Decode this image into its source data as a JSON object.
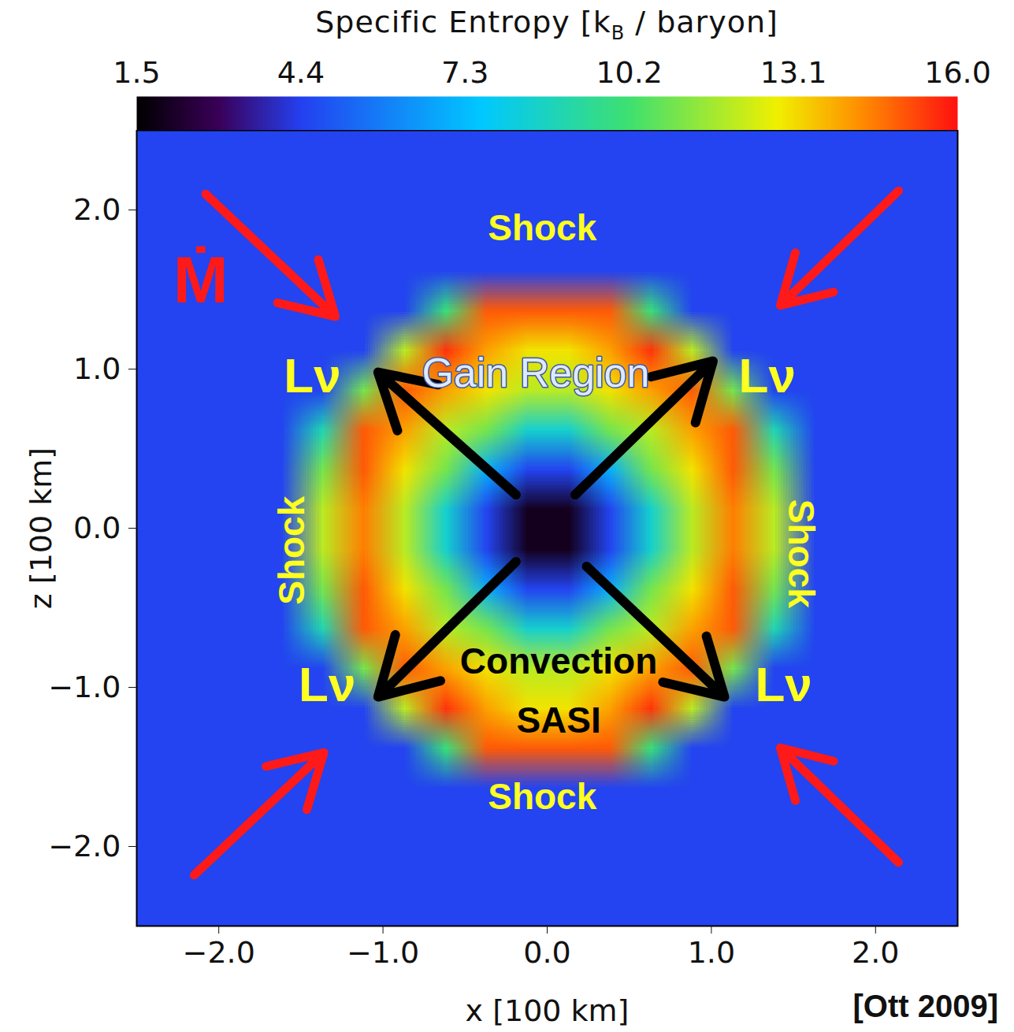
{
  "chart_data": {
    "type": "heatmap",
    "colorbar_label": "Specific Entropy [kB / baryon]",
    "xlabel": "x [100 km]",
    "ylabel": "z [100 km]",
    "xlim": [
      -2.5,
      2.5
    ],
    "ylim": [
      -2.5,
      2.5
    ],
    "xticks": [
      -2,
      -1,
      0,
      1,
      2
    ],
    "yticks": [
      -2,
      -1,
      0,
      1,
      2
    ],
    "grid": false,
    "color_range": [
      1.5,
      16
    ],
    "color_ticks": [
      1.5,
      4.4,
      7.3,
      10.2,
      13.1,
      {
        "value": 16,
        "label": "16.0"
      }
    ],
    "cells": [
      [
        4.5,
        4.5,
        4.5,
        4.5,
        4.5,
        4.5,
        4.5,
        4.5,
        4.5,
        4.5,
        4.5,
        4.5,
        4.5,
        4.5,
        4.5,
        4.5,
        4.5,
        4.5,
        4.5,
        4.5
      ],
      [
        4.5,
        4.5,
        4.5,
        4.5,
        4.5,
        4.5,
        4.5,
        4.5,
        4.5,
        4.5,
        4.5,
        4.5,
        4.5,
        4.5,
        4.5,
        4.5,
        4.5,
        4.5,
        4.5,
        4.5
      ],
      [
        4.5,
        4.5,
        4.5,
        4.5,
        4.5,
        4.5,
        4.5,
        4.5,
        4.5,
        4.5,
        4.5,
        4.5,
        4.5,
        4.5,
        4.5,
        4.5,
        4.5,
        4.5,
        4.5,
        4.5
      ],
      [
        4.5,
        4.5,
        4.5,
        4.5,
        4.5,
        4.5,
        4.5,
        4.5,
        4.5,
        4.5,
        4.5,
        4.5,
        4.5,
        4.5,
        4.5,
        4.5,
        4.5,
        4.5,
        4.5,
        4.5
      ],
      [
        4.5,
        4.5,
        4.5,
        4.5,
        4.5,
        4.5,
        4.5,
        10,
        15,
        15,
        15,
        15,
        10,
        4.5,
        4.5,
        4.5,
        4.5,
        4.5,
        4.5,
        4.5
      ],
      [
        4.5,
        4.5,
        4.5,
        4.5,
        4.5,
        4.5,
        12,
        15.5,
        14,
        13,
        13,
        14,
        15.5,
        12,
        4.5,
        4.5,
        4.5,
        4.5,
        4.5,
        4.5
      ],
      [
        4.5,
        4.5,
        4.5,
        4.5,
        4.5,
        11,
        15,
        14,
        13,
        12,
        12,
        13,
        14,
        15,
        11,
        4.5,
        4.5,
        4.5,
        4.5,
        4.5
      ],
      [
        4.5,
        4.5,
        4.5,
        4.5,
        9,
        15,
        14,
        12,
        11,
        8.5,
        8.5,
        11,
        12,
        14,
        15,
        9,
        4.5,
        4.5,
        4.5,
        4.5
      ],
      [
        4.5,
        4.5,
        4.5,
        4.5,
        11,
        15,
        13,
        11,
        7,
        4.5,
        4.5,
        7,
        11,
        13,
        15,
        11,
        4.5,
        4.5,
        4.5,
        4.5
      ],
      [
        4.5,
        4.5,
        4.5,
        4.5,
        12,
        14.5,
        12,
        8.5,
        4.5,
        2,
        2,
        4.5,
        8.5,
        12,
        14.5,
        12,
        4.5,
        4.5,
        4.5,
        4.5
      ],
      [
        4.5,
        4.5,
        4.5,
        4.5,
        12,
        14.5,
        12,
        8.5,
        4.5,
        2,
        2,
        4.5,
        8.5,
        12,
        14.5,
        12,
        4.5,
        4.5,
        4.5,
        4.5
      ],
      [
        4.5,
        4.5,
        4.5,
        4.5,
        11,
        15,
        13,
        11,
        7,
        4.5,
        4.5,
        7,
        11,
        13,
        15,
        11,
        4.5,
        4.5,
        4.5,
        4.5
      ],
      [
        4.5,
        4.5,
        4.5,
        4.5,
        9,
        15,
        14,
        12,
        11,
        8.5,
        8.5,
        11,
        12,
        14,
        15,
        9,
        4.5,
        4.5,
        4.5,
        4.5
      ],
      [
        4.5,
        4.5,
        4.5,
        4.5,
        4.5,
        11,
        15,
        14,
        13,
        12,
        12,
        13,
        14,
        15,
        11,
        4.5,
        4.5,
        4.5,
        4.5,
        4.5
      ],
      [
        4.5,
        4.5,
        4.5,
        4.5,
        4.5,
        4.5,
        12,
        15.5,
        14,
        13,
        13,
        14,
        15.5,
        12,
        4.5,
        4.5,
        4.5,
        4.5,
        4.5,
        4.5
      ],
      [
        4.5,
        4.5,
        4.5,
        4.5,
        4.5,
        4.5,
        4.5,
        10,
        15,
        15,
        15,
        15,
        10,
        4.5,
        4.5,
        4.5,
        4.5,
        4.5,
        4.5,
        4.5
      ],
      [
        4.5,
        4.5,
        4.5,
        4.5,
        4.5,
        4.5,
        4.5,
        4.5,
        4.5,
        4.5,
        4.5,
        4.5,
        4.5,
        4.5,
        4.5,
        4.5,
        4.5,
        4.5,
        4.5,
        4.5
      ],
      [
        4.5,
        4.5,
        4.5,
        4.5,
        4.5,
        4.5,
        4.5,
        4.5,
        4.5,
        4.5,
        4.5,
        4.5,
        4.5,
        4.5,
        4.5,
        4.5,
        4.5,
        4.5,
        4.5,
        4.5
      ],
      [
        4.5,
        4.5,
        4.5,
        4.5,
        4.5,
        4.5,
        4.5,
        4.5,
        4.5,
        4.5,
        4.5,
        4.5,
        4.5,
        4.5,
        4.5,
        4.5,
        4.5,
        4.5,
        4.5,
        4.5
      ],
      [
        4.5,
        4.5,
        4.5,
        4.5,
        4.5,
        4.5,
        4.5,
        4.5,
        4.5,
        4.5,
        4.5,
        4.5,
        4.5,
        4.5,
        4.5,
        4.5,
        4.5,
        4.5,
        4.5,
        4.5
      ]
    ],
    "annotations": {
      "shock": "Shock",
      "gain_region": "Gain Region",
      "convection": "Convection",
      "sasi": "SASI",
      "luminosity": "Lν",
      "accretion": "Ṁ"
    },
    "source": "[Ott 2009]"
  }
}
